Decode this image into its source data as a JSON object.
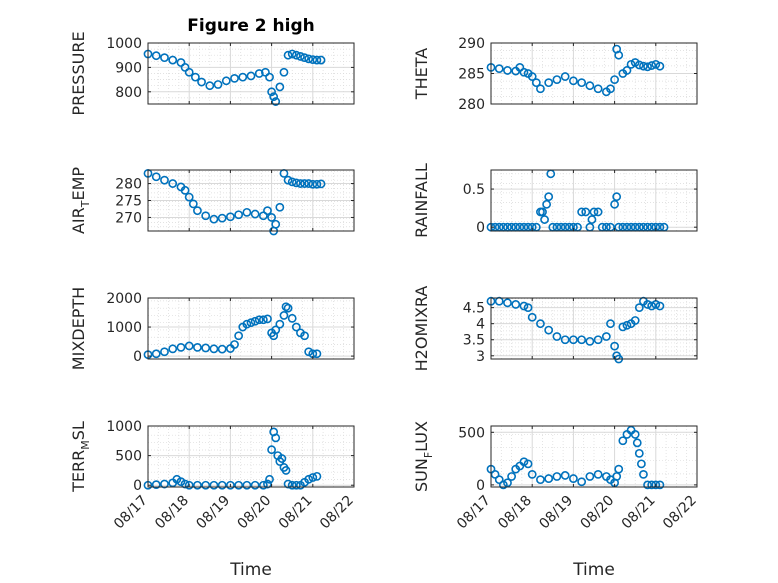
{
  "figure": {
    "title": "Figure 2 high",
    "xlabel": "Time"
  },
  "colors": {
    "marker": "#0072BD",
    "grid": "#d9d9d9",
    "axis": "#262626"
  },
  "chart_data": [
    {
      "type": "scatter",
      "ylabel": "PRESSURE",
      "ylim": [
        750,
        1000
      ],
      "yticks": [
        800,
        900,
        1000
      ],
      "ytick_labels": [
        "800",
        "900",
        "1000"
      ],
      "xlim": [
        0,
        5
      ],
      "xticks": [
        0,
        1,
        2,
        3,
        4,
        5
      ],
      "xtick_labels": [
        "08/17",
        "08/18",
        "08/19",
        "08/20",
        "08/21",
        "08/22"
      ],
      "show_xtick_labels": false,
      "grid": true,
      "x": [
        0,
        0.2,
        0.4,
        0.6,
        0.8,
        0.9,
        1.0,
        1.15,
        1.3,
        1.5,
        1.7,
        1.9,
        2.1,
        2.3,
        2.5,
        2.7,
        2.85,
        2.95,
        3.0,
        3.05,
        3.1,
        3.2,
        3.3,
        3.4,
        3.5,
        3.6,
        3.7,
        3.8,
        3.9,
        4.0,
        4.1,
        4.2
      ],
      "y": [
        955,
        948,
        940,
        930,
        920,
        900,
        880,
        860,
        840,
        825,
        830,
        845,
        855,
        860,
        865,
        875,
        880,
        860,
        800,
        780,
        760,
        820,
        880,
        950,
        955,
        950,
        945,
        940,
        935,
        932,
        930,
        930
      ]
    },
    {
      "type": "scatter",
      "ylabel": "THETA",
      "ylim": [
        280,
        290
      ],
      "yticks": [
        280,
        285,
        290
      ],
      "ytick_labels": [
        "280",
        "285",
        "290"
      ],
      "xlim": [
        0,
        5
      ],
      "xticks": [
        0,
        1,
        2,
        3,
        4,
        5
      ],
      "xtick_labels": [
        "08/17",
        "08/18",
        "08/19",
        "08/20",
        "08/21",
        "08/22"
      ],
      "show_xtick_labels": false,
      "grid": true,
      "x": [
        0,
        0.2,
        0.4,
        0.6,
        0.7,
        0.8,
        0.9,
        1.0,
        1.1,
        1.2,
        1.4,
        1.6,
        1.8,
        2.0,
        2.2,
        2.4,
        2.6,
        2.8,
        2.9,
        3.0,
        3.05,
        3.1,
        3.2,
        3.3,
        3.4,
        3.5,
        3.6,
        3.7,
        3.8,
        3.9,
        4.0,
        4.1
      ],
      "y": [
        286,
        285.8,
        285.5,
        285.4,
        286,
        285.2,
        285,
        284.5,
        283.5,
        282.5,
        283.5,
        284,
        284.5,
        283.8,
        283.5,
        283,
        282.5,
        282,
        282.5,
        284,
        289,
        288,
        285,
        285.5,
        286.5,
        286.8,
        286.4,
        286.2,
        286.1,
        286.3,
        286.5,
        286.2
      ]
    },
    {
      "type": "scatter",
      "ylabel": "AIR_TEMP",
      "ylim": [
        266,
        284
      ],
      "yticks": [
        270,
        275,
        280
      ],
      "ytick_labels": [
        "270",
        "275",
        "280"
      ],
      "xlim": [
        0,
        5
      ],
      "xticks": [
        0,
        1,
        2,
        3,
        4,
        5
      ],
      "xtick_labels": [
        "08/17",
        "08/18",
        "08/19",
        "08/20",
        "08/21",
        "08/22"
      ],
      "show_xtick_labels": false,
      "grid": true,
      "x": [
        0,
        0.2,
        0.4,
        0.6,
        0.8,
        0.9,
        1.0,
        1.1,
        1.2,
        1.4,
        1.6,
        1.8,
        2.0,
        2.2,
        2.4,
        2.6,
        2.8,
        2.9,
        3.0,
        3.05,
        3.1,
        3.2,
        3.3,
        3.4,
        3.5,
        3.6,
        3.7,
        3.8,
        3.9,
        4.0,
        4.1,
        4.2
      ],
      "y": [
        283,
        282,
        281,
        280,
        279,
        278,
        276,
        274,
        272,
        270.5,
        269.5,
        269.8,
        270.2,
        270.8,
        271.5,
        271,
        270.5,
        272,
        270,
        266,
        268,
        273,
        283,
        281,
        280.5,
        280.2,
        280,
        280,
        280,
        279.8,
        279.8,
        279.9
      ]
    },
    {
      "type": "scatter",
      "ylabel": "RAINFALL",
      "ylim": [
        -0.05,
        0.75
      ],
      "yticks": [
        0,
        0.5
      ],
      "ytick_labels": [
        "0",
        "0.5"
      ],
      "xlim": [
        0,
        5
      ],
      "xticks": [
        0,
        1,
        2,
        3,
        4,
        5
      ],
      "xtick_labels": [
        "08/17",
        "08/18",
        "08/19",
        "08/20",
        "08/21",
        "08/22"
      ],
      "show_xtick_labels": false,
      "grid": true,
      "x": [
        0,
        0.1,
        0.2,
        0.3,
        0.4,
        0.5,
        0.6,
        0.7,
        0.8,
        0.9,
        1.0,
        1.1,
        1.2,
        1.25,
        1.3,
        1.35,
        1.4,
        1.45,
        1.5,
        1.6,
        1.7,
        1.8,
        1.9,
        2.0,
        2.1,
        2.2,
        2.3,
        2.4,
        2.45,
        2.5,
        2.6,
        2.7,
        2.8,
        2.9,
        3.0,
        3.05,
        3.1,
        3.2,
        3.3,
        3.4,
        3.5,
        3.6,
        3.7,
        3.8,
        3.9,
        4.0,
        4.1,
        4.2
      ],
      "y": [
        0,
        0,
        0,
        0,
        0,
        0,
        0,
        0,
        0,
        0,
        0,
        0,
        0.2,
        0.2,
        0.1,
        0.3,
        0.4,
        0.7,
        0,
        0,
        0,
        0,
        0,
        0,
        0,
        0.2,
        0.2,
        0,
        0.1,
        0.2,
        0.2,
        0,
        0,
        0,
        0.3,
        0.4,
        0,
        0,
        0,
        0,
        0,
        0,
        0,
        0,
        0,
        0,
        0,
        0
      ]
    },
    {
      "type": "scatter",
      "ylabel": "MIXDEPTH",
      "ylim": [
        -100,
        2000
      ],
      "yticks": [
        0,
        1000,
        2000
      ],
      "ytick_labels": [
        "0",
        "1000",
        "2000"
      ],
      "xlim": [
        0,
        5
      ],
      "xticks": [
        0,
        1,
        2,
        3,
        4,
        5
      ],
      "xtick_labels": [
        "08/17",
        "08/18",
        "08/19",
        "08/20",
        "08/21",
        "08/22"
      ],
      "show_xtick_labels": false,
      "grid": true,
      "x": [
        0,
        0.2,
        0.4,
        0.6,
        0.8,
        1.0,
        1.2,
        1.4,
        1.6,
        1.8,
        2.0,
        2.1,
        2.2,
        2.3,
        2.4,
        2.5,
        2.6,
        2.7,
        2.8,
        2.9,
        3.0,
        3.05,
        3.1,
        3.2,
        3.3,
        3.35,
        3.4,
        3.5,
        3.6,
        3.7,
        3.8,
        3.9,
        4.0,
        4.1
      ],
      "y": [
        50,
        80,
        150,
        250,
        300,
        350,
        300,
        280,
        250,
        240,
        260,
        400,
        700,
        1000,
        1100,
        1150,
        1200,
        1250,
        1250,
        1280,
        800,
        700,
        900,
        1100,
        1400,
        1700,
        1650,
        1300,
        1000,
        800,
        700,
        150,
        80,
        80
      ]
    },
    {
      "type": "scatter",
      "ylabel": "H2OMIXRA",
      "ylim": [
        2.9,
        4.8
      ],
      "yticks": [
        3,
        3.5,
        4,
        4.5
      ],
      "ytick_labels": [
        "3",
        "3.5",
        "4",
        "4.5"
      ],
      "xlim": [
        0,
        5
      ],
      "xticks": [
        0,
        1,
        2,
        3,
        4,
        5
      ],
      "xtick_labels": [
        "08/17",
        "08/18",
        "08/19",
        "08/20",
        "08/21",
        "08/22"
      ],
      "show_xtick_labels": false,
      "grid": true,
      "x": [
        0,
        0.2,
        0.4,
        0.6,
        0.8,
        0.9,
        1.0,
        1.2,
        1.4,
        1.6,
        1.8,
        2.0,
        2.2,
        2.4,
        2.6,
        2.8,
        2.9,
        3.0,
        3.05,
        3.1,
        3.2,
        3.3,
        3.4,
        3.5,
        3.6,
        3.7,
        3.8,
        3.9,
        4.0,
        4.1
      ],
      "y": [
        4.7,
        4.7,
        4.65,
        4.6,
        4.55,
        4.5,
        4.2,
        4.0,
        3.8,
        3.6,
        3.5,
        3.5,
        3.5,
        3.45,
        3.5,
        3.6,
        4.0,
        3.3,
        3.0,
        2.9,
        3.9,
        3.95,
        4.0,
        4.1,
        4.5,
        4.7,
        4.6,
        4.55,
        4.6,
        4.55
      ]
    },
    {
      "type": "scatter",
      "ylabel": "TERR_MSL",
      "ylim": [
        -30,
        1000
      ],
      "yticks": [
        0,
        500,
        1000
      ],
      "ytick_labels": [
        "0",
        "500",
        "1000"
      ],
      "xlim": [
        0,
        5
      ],
      "xticks": [
        0,
        1,
        2,
        3,
        4,
        5
      ],
      "xtick_labels": [
        "08/17",
        "08/18",
        "08/19",
        "08/20",
        "08/21",
        "08/22"
      ],
      "show_xtick_labels": true,
      "grid": true,
      "x": [
        0,
        0.2,
        0.4,
        0.6,
        0.7,
        0.8,
        0.9,
        1.0,
        1.2,
        1.4,
        1.6,
        1.8,
        2.0,
        2.2,
        2.4,
        2.6,
        2.8,
        2.9,
        2.95,
        3.0,
        3.05,
        3.1,
        3.15,
        3.2,
        3.25,
        3.3,
        3.35,
        3.4,
        3.5,
        3.6,
        3.7,
        3.8,
        3.9,
        4.0,
        4.1
      ],
      "y": [
        0,
        10,
        20,
        40,
        100,
        60,
        20,
        0,
        0,
        0,
        0,
        0,
        0,
        0,
        0,
        0,
        0,
        20,
        100,
        600,
        900,
        800,
        500,
        400,
        450,
        300,
        250,
        20,
        0,
        0,
        0,
        50,
        100,
        130,
        150
      ]
    },
    {
      "type": "scatter",
      "ylabel": "SUN_FLUX",
      "ylim": [
        -20,
        560
      ],
      "yticks": [
        0,
        500
      ],
      "ytick_labels": [
        "0",
        "500"
      ],
      "xlim": [
        0,
        5
      ],
      "xticks": [
        0,
        1,
        2,
        3,
        4,
        5
      ],
      "xtick_labels": [
        "08/17",
        "08/18",
        "08/19",
        "08/20",
        "08/21",
        "08/22"
      ],
      "show_xtick_labels": true,
      "grid": true,
      "x": [
        0,
        0.1,
        0.2,
        0.3,
        0.4,
        0.5,
        0.6,
        0.7,
        0.8,
        0.9,
        1.0,
        1.2,
        1.4,
        1.6,
        1.8,
        2.0,
        2.2,
        2.4,
        2.6,
        2.8,
        2.9,
        3.0,
        3.05,
        3.1,
        3.2,
        3.3,
        3.4,
        3.5,
        3.55,
        3.6,
        3.65,
        3.7,
        3.8,
        3.9,
        4.0,
        4.1
      ],
      "y": [
        150,
        100,
        50,
        0,
        20,
        80,
        150,
        180,
        220,
        200,
        100,
        50,
        60,
        80,
        90,
        60,
        30,
        80,
        100,
        80,
        50,
        20,
        80,
        150,
        420,
        480,
        520,
        480,
        400,
        300,
        200,
        100,
        0,
        0,
        0,
        0
      ]
    }
  ]
}
